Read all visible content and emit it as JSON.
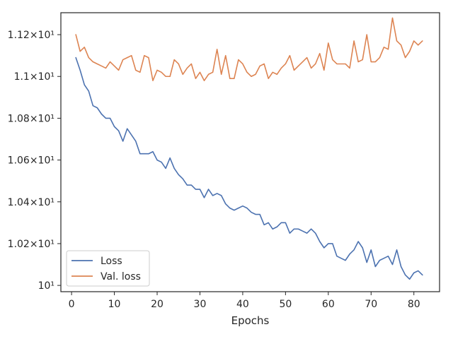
{
  "chart_data": {
    "type": "line",
    "title": "",
    "xlabel": "Epochs",
    "ylabel": "",
    "x_ticks": [
      0,
      10,
      20,
      30,
      40,
      50,
      60,
      70,
      80
    ],
    "y_ticks": [
      10.0,
      10.2,
      10.4,
      10.6,
      10.8,
      11.0,
      11.2
    ],
    "y_tick_labels": [
      "10¹",
      "1.02×10¹",
      "1.04×10¹",
      "1.06×10¹",
      "1.08×10¹",
      "1.1×10¹",
      "1.12×10¹"
    ],
    "xlim": [
      -2.5,
      86.0
    ],
    "ylim": [
      9.97,
      11.305
    ],
    "grid": false,
    "legend_position": "lower-left",
    "x": [
      1,
      2,
      3,
      4,
      5,
      6,
      7,
      8,
      9,
      10,
      11,
      12,
      13,
      14,
      15,
      16,
      17,
      18,
      19,
      20,
      21,
      22,
      23,
      24,
      25,
      26,
      27,
      28,
      29,
      30,
      31,
      32,
      33,
      34,
      35,
      36,
      37,
      38,
      39,
      40,
      41,
      42,
      43,
      44,
      45,
      46,
      47,
      48,
      49,
      50,
      51,
      52,
      53,
      54,
      55,
      56,
      57,
      58,
      59,
      60,
      61,
      62,
      63,
      64,
      65,
      66,
      67,
      68,
      69,
      70,
      71,
      72,
      73,
      74,
      75,
      76,
      77,
      78,
      79,
      80,
      81,
      82
    ],
    "series": [
      {
        "name": "Loss",
        "color": "#4c72b0",
        "values": [
          11.09,
          11.03,
          10.96,
          10.93,
          10.86,
          10.85,
          10.82,
          10.8,
          10.8,
          10.76,
          10.74,
          10.69,
          10.75,
          10.72,
          10.69,
          10.63,
          10.63,
          10.63,
          10.64,
          10.6,
          10.59,
          10.56,
          10.61,
          10.56,
          10.53,
          10.51,
          10.48,
          10.48,
          10.46,
          10.46,
          10.42,
          10.46,
          10.43,
          10.44,
          10.43,
          10.39,
          10.37,
          10.36,
          10.37,
          10.38,
          10.37,
          10.35,
          10.34,
          10.34,
          10.29,
          10.3,
          10.27,
          10.28,
          10.3,
          10.3,
          10.25,
          10.27,
          10.27,
          10.26,
          10.25,
          10.27,
          10.25,
          10.21,
          10.18,
          10.2,
          10.2,
          10.14,
          10.13,
          10.12,
          10.15,
          10.17,
          10.21,
          10.18,
          10.11,
          10.17,
          10.09,
          10.12,
          10.13,
          10.14,
          10.1,
          10.17,
          10.09,
          10.05,
          10.03,
          10.06,
          10.07,
          10.05
        ]
      },
      {
        "name": "Val. loss",
        "color": "#dd8452",
        "values": [
          11.2,
          11.12,
          11.14,
          11.09,
          11.07,
          11.06,
          11.05,
          11.04,
          11.07,
          11.05,
          11.03,
          11.08,
          11.09,
          11.1,
          11.03,
          11.02,
          11.1,
          11.09,
          10.98,
          11.03,
          11.02,
          11.0,
          11.0,
          11.08,
          11.06,
          11.01,
          11.04,
          11.06,
          10.99,
          11.02,
          10.98,
          11.01,
          11.02,
          11.13,
          11.01,
          11.1,
          10.99,
          10.99,
          11.08,
          11.06,
          11.02,
          11.0,
          11.01,
          11.05,
          11.06,
          10.99,
          11.02,
          11.01,
          11.04,
          11.06,
          11.1,
          11.03,
          11.05,
          11.07,
          11.09,
          11.04,
          11.06,
          11.11,
          11.03,
          11.16,
          11.08,
          11.06,
          11.06,
          11.06,
          11.04,
          11.17,
          11.07,
          11.08,
          11.2,
          11.07,
          11.07,
          11.09,
          11.14,
          11.13,
          11.28,
          11.17,
          11.15,
          11.09,
          11.12,
          11.17,
          11.15,
          11.17
        ]
      }
    ]
  }
}
